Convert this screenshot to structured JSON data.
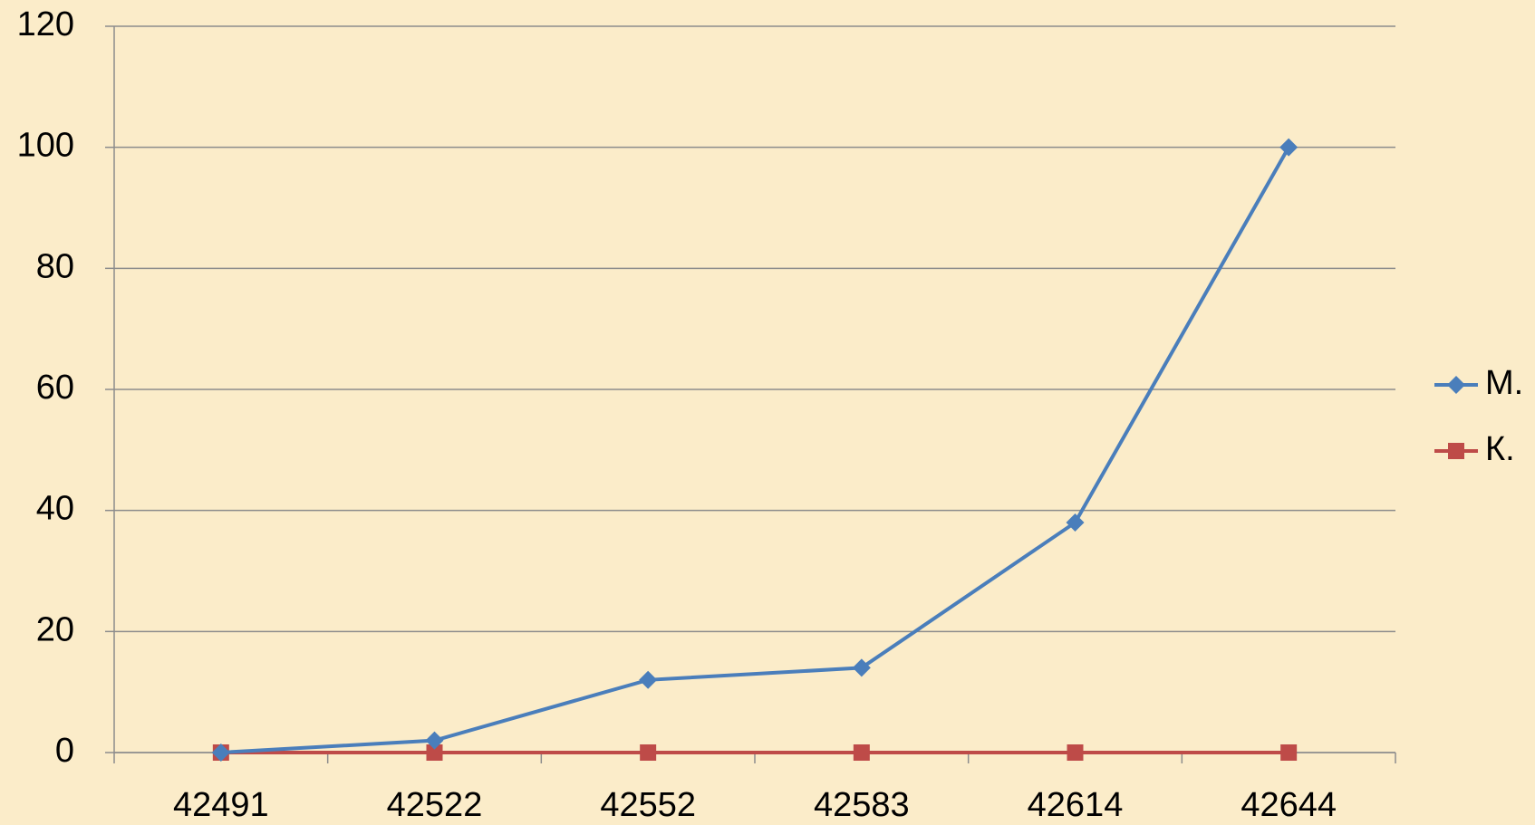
{
  "chart_data": {
    "type": "line",
    "categories": [
      "42491",
      "42522",
      "42552",
      "42583",
      "42614",
      "42644"
    ],
    "series": [
      {
        "name": "М.",
        "color": "#4a7ebb",
        "marker": "diamond",
        "values": [
          0,
          2,
          12,
          14,
          38,
          100
        ]
      },
      {
        "name": "К.",
        "color": "#be4b48",
        "marker": "square",
        "values": [
          0,
          0,
          0,
          0,
          0,
          0
        ]
      }
    ],
    "ylim": [
      0,
      120
    ],
    "yticks": [
      0,
      20,
      40,
      60,
      80,
      100,
      120
    ],
    "grid": true,
    "legend": "right"
  }
}
